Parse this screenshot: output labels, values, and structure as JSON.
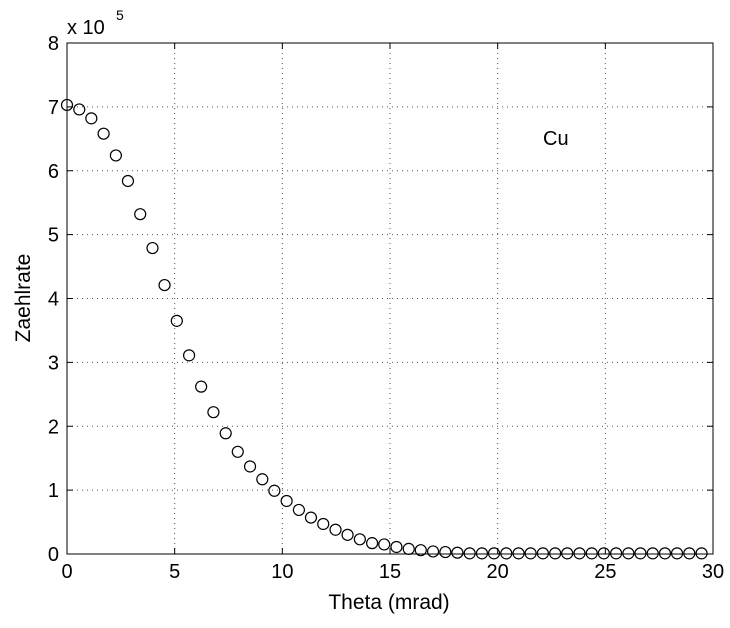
{
  "chart_data": {
    "type": "scatter",
    "xlabel": "Theta (mrad)",
    "ylabel": "Zaehlrate",
    "y_scale_label": {
      "prefix": "x 10",
      "exponent": "5"
    },
    "annotation": "Cu",
    "xlim": [
      0,
      30
    ],
    "ylim": [
      0,
      8
    ],
    "y_multiplier": 100000,
    "x_ticks": [
      "0",
      "5",
      "10",
      "15",
      "20",
      "25",
      "30"
    ],
    "y_ticks": [
      "0",
      "1",
      "2",
      "3",
      "4",
      "5",
      "6",
      "7",
      "8"
    ],
    "grid": true,
    "marker": "open-circle",
    "series": [
      {
        "x": [
          0.0,
          0.57,
          1.13,
          1.7,
          2.27,
          2.83,
          3.4,
          3.97,
          4.53,
          5.1,
          5.67,
          6.23,
          6.8,
          7.37,
          7.93,
          8.5,
          9.07,
          9.63,
          10.2,
          10.77,
          11.33,
          11.9,
          12.47,
          13.03,
          13.6,
          14.17,
          14.73,
          15.3,
          15.87,
          16.43,
          17.0,
          17.57,
          18.13,
          18.7,
          19.27,
          19.83,
          20.4,
          20.97,
          21.53,
          22.1,
          22.67,
          23.23,
          23.8,
          24.37,
          24.93,
          25.5,
          26.07,
          26.63,
          27.2,
          27.77,
          28.33,
          28.9,
          29.47
        ],
        "y": [
          7.03,
          6.96,
          6.82,
          6.58,
          6.24,
          5.84,
          5.32,
          4.79,
          4.21,
          3.65,
          3.11,
          2.62,
          2.22,
          1.89,
          1.6,
          1.37,
          1.17,
          0.99,
          0.83,
          0.69,
          0.57,
          0.47,
          0.38,
          0.3,
          0.23,
          0.17,
          0.15,
          0.11,
          0.08,
          0.06,
          0.04,
          0.03,
          0.02,
          0.01,
          0.01,
          0.01,
          0.01,
          0.01,
          0.01,
          0.01,
          0.01,
          0.01,
          0.01,
          0.01,
          0.01,
          0.01,
          0.01,
          0.01,
          0.01,
          0.01,
          0.01,
          0.01,
          0.01
        ]
      }
    ]
  }
}
